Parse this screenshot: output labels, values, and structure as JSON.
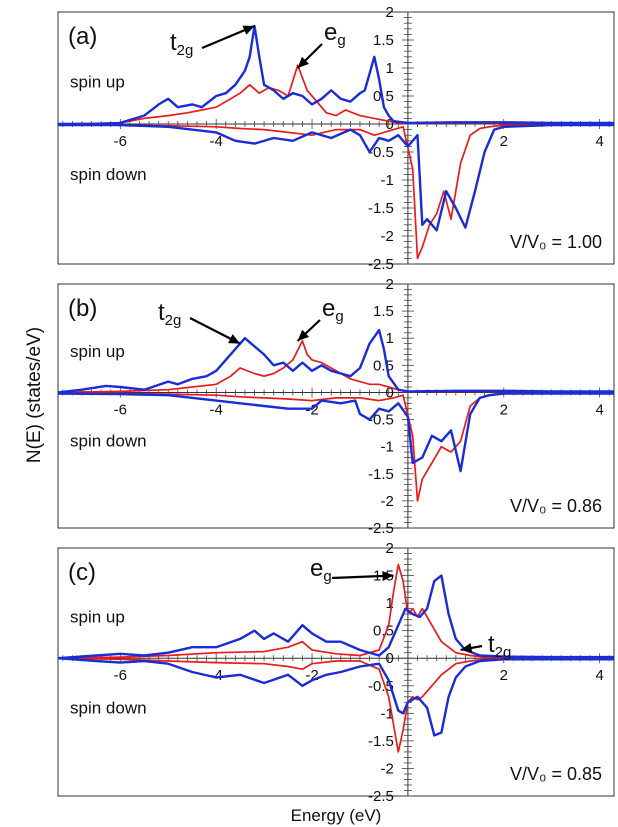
{
  "figure": {
    "ylabel": "N(E) (states/eV)",
    "xlabel": "Energy (eV)"
  },
  "chart_data": [
    {
      "type": "line",
      "panel_label": "(a)",
      "volume_ratio": "V/V₀ = 1.00",
      "xlim": [
        -7.3,
        4.3
      ],
      "ylim": [
        -2.5,
        2
      ],
      "x_ticks": [
        -6,
        -4,
        2,
        4
      ],
      "y_ticks": [
        -2.5,
        -2,
        -1.5,
        -1,
        -0.5,
        0,
        0.5,
        1,
        1.5,
        2
      ],
      "colors": {
        "t2g": "#1a2cd6",
        "eg": "#e81c1c"
      },
      "text_labels": {
        "spin_up": "spin up",
        "spin_down": "spin down"
      },
      "annotations": [
        {
          "text": "t2g",
          "base": "t",
          "sub": "2g",
          "target": [
            -3.2,
            1.75
          ]
        },
        {
          "text": "eg",
          "base": "e",
          "sub": "g",
          "target": [
            -2.3,
            1.0
          ]
        }
      ],
      "series": [
        {
          "name": "t2g",
          "channel": "up",
          "x": [
            -7.3,
            -6.5,
            -6,
            -5.5,
            -5.2,
            -5,
            -4.8,
            -4.5,
            -4.3,
            -4,
            -3.8,
            -3.6,
            -3.4,
            -3.3,
            -3.2,
            -3.1,
            -3,
            -2.8,
            -2.6,
            -2.4,
            -2.2,
            -2,
            -1.8,
            -1.6,
            -1.4,
            -1.2,
            -1,
            -0.9,
            -0.8,
            -0.7,
            -0.6,
            -0.5,
            -0.4,
            -0.3,
            0,
            1,
            2,
            3,
            4.3
          ],
          "y": [
            0,
            0,
            0.02,
            0.15,
            0.35,
            0.45,
            0.3,
            0.35,
            0.3,
            0.5,
            0.55,
            0.7,
            0.95,
            1.2,
            1.75,
            1.2,
            0.7,
            0.6,
            0.45,
            0.55,
            0.5,
            0.35,
            0.45,
            0.6,
            0.45,
            0.4,
            0.55,
            0.6,
            0.9,
            1.2,
            0.8,
            0.3,
            0.15,
            0.05,
            0.02,
            0.03,
            0.03,
            0.02,
            0.02
          ]
        },
        {
          "name": "eg",
          "channel": "up",
          "x": [
            -7.3,
            -6,
            -5.5,
            -5,
            -4.6,
            -4.3,
            -4,
            -3.7,
            -3.5,
            -3.3,
            -3.1,
            -2.9,
            -2.7,
            -2.5,
            -2.3,
            -2.1,
            -1.9,
            -1.7,
            -1.5,
            -1.3,
            -1,
            -0.7,
            -0.4,
            -0.2,
            0,
            1,
            2,
            3,
            4.3
          ],
          "y": [
            0,
            0.02,
            0.1,
            0.15,
            0.2,
            0.25,
            0.3,
            0.45,
            0.55,
            0.7,
            0.55,
            0.65,
            0.6,
            0.5,
            1.05,
            0.6,
            0.4,
            0.2,
            0.15,
            0.25,
            0.15,
            0.1,
            0.05,
            0.02,
            0.01,
            0.02,
            0.02,
            0.02,
            0.02
          ]
        },
        {
          "name": "t2g",
          "channel": "down",
          "x": [
            -7.3,
            -6,
            -5,
            -4,
            -3.6,
            -3.2,
            -2.8,
            -2.4,
            -2,
            -1.6,
            -1.2,
            -1,
            -0.8,
            -0.6,
            -0.4,
            -0.2,
            0,
            0.2,
            0.3,
            0.4,
            0.6,
            0.8,
            1,
            1.2,
            1.4,
            1.6,
            1.8,
            2,
            3,
            4.3
          ],
          "y": [
            -0.02,
            -0.02,
            -0.05,
            -0.15,
            -0.3,
            -0.35,
            -0.25,
            -0.3,
            -0.15,
            -0.25,
            -0.1,
            -0.2,
            -0.5,
            -0.25,
            -0.3,
            -0.2,
            -0.4,
            -0.2,
            -1.8,
            -1.7,
            -1.9,
            -1.2,
            -1.5,
            -1.85,
            -1.2,
            -0.5,
            -0.1,
            -0.05,
            -0.02,
            -0.02
          ]
        },
        {
          "name": "eg",
          "channel": "down",
          "x": [
            -7.3,
            -6,
            -5,
            -4,
            -3.5,
            -3,
            -2.5,
            -2,
            -1.5,
            -1,
            -0.7,
            -0.5,
            -0.3,
            -0.1,
            0.1,
            0.2,
            0.3,
            0.45,
            0.6,
            0.75,
            0.9,
            1.1,
            1.3,
            1.5,
            1.7,
            2,
            3,
            4.3
          ],
          "y": [
            -0.02,
            -0.02,
            -0.03,
            -0.05,
            -0.08,
            -0.1,
            -0.15,
            -0.2,
            -0.1,
            -0.1,
            -0.2,
            -0.15,
            -0.1,
            -0.05,
            -0.8,
            -2.4,
            -2.2,
            -1.8,
            -1.6,
            -1.2,
            -1.7,
            -0.7,
            -0.2,
            -0.08,
            -0.05,
            -0.02,
            -0.02,
            -0.02
          ]
        }
      ]
    },
    {
      "type": "line",
      "panel_label": "(b)",
      "volume_ratio": "V/V₀ = 0.86",
      "xlim": [
        -7.3,
        4.3
      ],
      "ylim": [
        -2.5,
        2
      ],
      "x_ticks": [
        -6,
        -4,
        -2,
        2,
        4
      ],
      "y_ticks": [
        -2.5,
        -2,
        -1.5,
        -1,
        -0.5,
        0,
        0.5,
        1,
        1.5,
        2
      ],
      "colors": {
        "t2g": "#1a2cd6",
        "eg": "#e81c1c"
      },
      "text_labels": {
        "spin_up": "spin up",
        "spin_down": "spin down"
      },
      "annotations": [
        {
          "text": "t2g",
          "base": "t",
          "sub": "2g",
          "target": [
            -3.5,
            0.9
          ]
        },
        {
          "text": "eg",
          "base": "e",
          "sub": "g",
          "target": [
            -2.3,
            0.95
          ]
        }
      ],
      "series": [
        {
          "name": "t2g",
          "channel": "up",
          "x": [
            -7.3,
            -6.8,
            -6.3,
            -6,
            -5.5,
            -5,
            -4.8,
            -4.5,
            -4.2,
            -4,
            -3.8,
            -3.6,
            -3.4,
            -3.2,
            -3,
            -2.8,
            -2.6,
            -2.4,
            -2.2,
            -2,
            -1.8,
            -1.6,
            -1.4,
            -1.2,
            -1,
            -0.8,
            -0.6,
            -0.5,
            -0.4,
            -0.2,
            0,
            1,
            2,
            3,
            4.3
          ],
          "y": [
            0,
            0.05,
            0.12,
            0.1,
            0.05,
            0.2,
            0.15,
            0.25,
            0.3,
            0.4,
            0.6,
            0.8,
            1.0,
            0.85,
            0.7,
            0.5,
            0.55,
            0.4,
            0.55,
            0.4,
            0.5,
            0.4,
            0.35,
            0.3,
            0.45,
            0.9,
            1.15,
            0.8,
            0.3,
            0.05,
            0.02,
            0.03,
            0.03,
            0.02,
            0.02
          ]
        },
        {
          "name": "eg",
          "channel": "up",
          "x": [
            -7.3,
            -6,
            -5,
            -4.5,
            -4,
            -3.7,
            -3.5,
            -3.2,
            -3,
            -2.8,
            -2.6,
            -2.4,
            -2.2,
            -2.1,
            -2,
            -1.8,
            -1.6,
            -1.4,
            -1.2,
            -1,
            -0.8,
            -0.6,
            -0.4,
            -0.2,
            0,
            1,
            2,
            3,
            4.3
          ],
          "y": [
            0,
            0.02,
            0.05,
            0.1,
            0.15,
            0.3,
            0.45,
            0.35,
            0.3,
            0.35,
            0.45,
            0.6,
            0.95,
            0.7,
            0.6,
            0.55,
            0.45,
            0.35,
            0.25,
            0.2,
            0.15,
            0.15,
            0.1,
            0.05,
            0.01,
            0.02,
            0.02,
            0.02,
            0.02
          ]
        },
        {
          "name": "t2g",
          "channel": "down",
          "x": [
            -7.3,
            -6,
            -5,
            -4,
            -3.5,
            -3,
            -2.5,
            -2,
            -1.8,
            -1.4,
            -1.1,
            -1,
            -0.8,
            -0.6,
            -0.4,
            -0.2,
            0,
            0.1,
            0.3,
            0.5,
            0.7,
            0.9,
            1.1,
            1.3,
            1.5,
            1.7,
            2,
            3,
            4.3
          ],
          "y": [
            -0.02,
            -0.03,
            -0.05,
            -0.15,
            -0.2,
            -0.25,
            -0.3,
            -0.3,
            -0.15,
            -0.2,
            -0.15,
            -0.4,
            -0.5,
            -0.3,
            -0.35,
            -0.2,
            -0.45,
            -1.3,
            -1.2,
            -0.8,
            -0.9,
            -0.7,
            -1.45,
            -0.4,
            -0.1,
            -0.05,
            -0.02,
            -0.02,
            -0.02
          ]
        },
        {
          "name": "eg",
          "channel": "down",
          "x": [
            -7.3,
            -6,
            -5,
            -4,
            -3.5,
            -3,
            -2.5,
            -2,
            -1.5,
            -1,
            -0.6,
            -0.3,
            -0.1,
            0.1,
            0.2,
            0.3,
            0.5,
            0.7,
            0.9,
            1.1,
            1.3,
            1.5,
            1.7,
            2,
            3,
            4.3
          ],
          "y": [
            -0.02,
            -0.02,
            -0.03,
            -0.05,
            -0.08,
            -0.1,
            -0.12,
            -0.15,
            -0.1,
            -0.1,
            -0.15,
            -0.1,
            -0.05,
            -0.8,
            -2.0,
            -1.6,
            -1.3,
            -1.0,
            -1.1,
            -0.9,
            -0.25,
            -0.1,
            -0.05,
            -0.02,
            -0.02,
            -0.02
          ]
        }
      ]
    },
    {
      "type": "line",
      "panel_label": "(c)",
      "volume_ratio": "V/V₀ = 0.85",
      "xlim": [
        -7.3,
        4.3
      ],
      "ylim": [
        -2.5,
        2
      ],
      "x_ticks": [
        -6,
        -4,
        -2,
        2,
        4
      ],
      "y_ticks": [
        -2.5,
        -2,
        -1.5,
        -1,
        -0.5,
        0,
        0.5,
        1,
        1.5,
        2
      ],
      "colors": {
        "t2g": "#1a2cd6",
        "eg": "#e81c1c"
      },
      "text_labels": {
        "spin_up": "spin up",
        "spin_down": "spin down"
      },
      "annotations": [
        {
          "text": "eg",
          "base": "e",
          "sub": "g",
          "target": [
            -0.3,
            1.5
          ]
        },
        {
          "text": "t2g",
          "base": "t",
          "sub": "2g",
          "target": [
            1.1,
            0.15
          ]
        }
      ],
      "series": [
        {
          "name": "t2g",
          "channel": "up",
          "x": [
            -7.3,
            -6.5,
            -6,
            -5.5,
            -5,
            -4.5,
            -4,
            -3.5,
            -3.2,
            -3,
            -2.8,
            -2.5,
            -2.2,
            -2,
            -1.7,
            -1.4,
            -1,
            -0.6,
            -0.4,
            -0.2,
            -0.05,
            0.1,
            0.25,
            0.4,
            0.55,
            0.7,
            0.85,
            1,
            1.2,
            1.5,
            2,
            3,
            4.3
          ],
          "y": [
            0,
            0.05,
            0.08,
            0.05,
            0.1,
            0.2,
            0.2,
            0.35,
            0.5,
            0.35,
            0.45,
            0.3,
            0.6,
            0.45,
            0.3,
            0.3,
            0.15,
            0.05,
            0.2,
            0.6,
            0.9,
            0.8,
            0.75,
            0.9,
            1.4,
            1.5,
            0.8,
            0.35,
            0.15,
            0.05,
            0.03,
            0.02,
            0.02
          ]
        },
        {
          "name": "eg",
          "channel": "up",
          "x": [
            -7.3,
            -6,
            -5,
            -4,
            -3,
            -2.5,
            -2.2,
            -2,
            -1.5,
            -1,
            -0.6,
            -0.4,
            -0.3,
            -0.2,
            -0.1,
            0,
            0.1,
            0.2,
            0.3,
            0.5,
            0.7,
            1,
            1.3,
            1.6,
            2,
            3,
            4.3
          ],
          "y": [
            0,
            0.02,
            0.05,
            0.1,
            0.12,
            0.2,
            0.3,
            0.15,
            0.08,
            0.05,
            0.15,
            0.6,
            1.2,
            1.7,
            1.4,
            0.8,
            0.9,
            0.75,
            0.9,
            0.6,
            0.3,
            0.1,
            0.05,
            0.02,
            0.01,
            0.01,
            0.01
          ]
        },
        {
          "name": "t2g",
          "channel": "down",
          "x": [
            -7.3,
            -6.5,
            -6,
            -5.5,
            -5,
            -4.5,
            -4,
            -3.5,
            -3,
            -2.5,
            -2.2,
            -2,
            -1.7,
            -1.4,
            -1,
            -0.6,
            -0.4,
            -0.2,
            -0.1,
            0,
            0.2,
            0.4,
            0.55,
            0.7,
            0.85,
            1,
            1.2,
            1.5,
            2,
            3,
            4.3
          ],
          "y": [
            0,
            -0.05,
            -0.08,
            -0.05,
            -0.1,
            -0.25,
            -0.35,
            -0.3,
            -0.45,
            -0.3,
            -0.5,
            -0.4,
            -0.3,
            -0.25,
            -0.15,
            -0.1,
            -0.4,
            -0.95,
            -1.0,
            -0.8,
            -0.7,
            -0.9,
            -1.4,
            -1.35,
            -0.7,
            -0.35,
            -0.15,
            -0.05,
            -0.02,
            -0.02,
            -0.02
          ]
        },
        {
          "name": "eg",
          "channel": "down",
          "x": [
            -7.3,
            -6,
            -5,
            -4,
            -3,
            -2.5,
            -2.2,
            -2,
            -1.5,
            -1,
            -0.6,
            -0.4,
            -0.3,
            -0.2,
            -0.1,
            0,
            0.1,
            0.2,
            0.3,
            0.5,
            0.7,
            1,
            1.3,
            1.6,
            2,
            3,
            4.3
          ],
          "y": [
            0,
            -0.02,
            -0.05,
            -0.08,
            -0.1,
            -0.15,
            -0.2,
            -0.1,
            -0.05,
            -0.05,
            -0.2,
            -0.7,
            -1.2,
            -1.7,
            -1.3,
            -0.8,
            -0.7,
            -0.75,
            -0.7,
            -0.5,
            -0.3,
            -0.1,
            -0.05,
            -0.02,
            -0.01,
            -0.01,
            -0.01
          ]
        }
      ]
    }
  ]
}
